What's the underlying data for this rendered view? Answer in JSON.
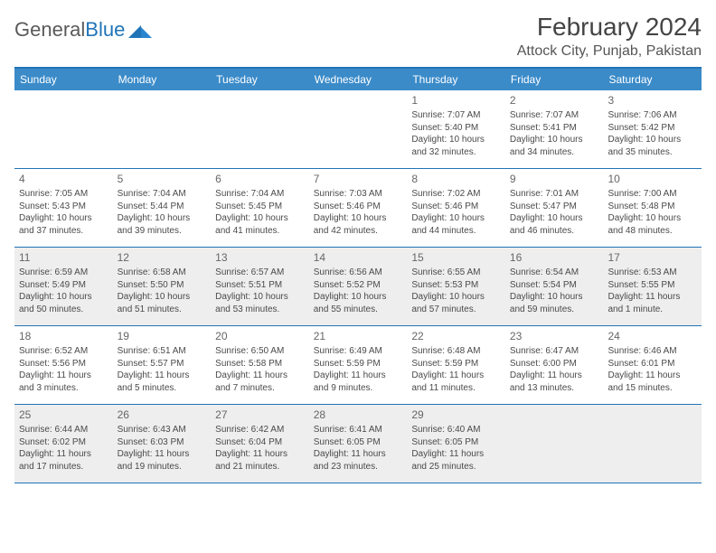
{
  "logo": {
    "text1": "General",
    "text2": "Blue",
    "accent": "#2074b8"
  },
  "title": "February 2024",
  "location": "Attock City, Punjab, Pakistan",
  "colors": {
    "header_bg": "#3b8bc9",
    "border": "#2074b8",
    "shaded_bg": "#eeeeee",
    "text": "#4a4a4a",
    "title_text": "#444444"
  },
  "day_names": [
    "Sunday",
    "Monday",
    "Tuesday",
    "Wednesday",
    "Thursday",
    "Friday",
    "Saturday"
  ],
  "weeks": [
    [
      null,
      null,
      null,
      null,
      {
        "n": "1",
        "sr": "Sunrise: 7:07 AM",
        "ss": "Sunset: 5:40 PM",
        "dl": "Daylight: 10 hours and 32 minutes."
      },
      {
        "n": "2",
        "sr": "Sunrise: 7:07 AM",
        "ss": "Sunset: 5:41 PM",
        "dl": "Daylight: 10 hours and 34 minutes."
      },
      {
        "n": "3",
        "sr": "Sunrise: 7:06 AM",
        "ss": "Sunset: 5:42 PM",
        "dl": "Daylight: 10 hours and 35 minutes."
      }
    ],
    [
      {
        "n": "4",
        "sr": "Sunrise: 7:05 AM",
        "ss": "Sunset: 5:43 PM",
        "dl": "Daylight: 10 hours and 37 minutes."
      },
      {
        "n": "5",
        "sr": "Sunrise: 7:04 AM",
        "ss": "Sunset: 5:44 PM",
        "dl": "Daylight: 10 hours and 39 minutes."
      },
      {
        "n": "6",
        "sr": "Sunrise: 7:04 AM",
        "ss": "Sunset: 5:45 PM",
        "dl": "Daylight: 10 hours and 41 minutes."
      },
      {
        "n": "7",
        "sr": "Sunrise: 7:03 AM",
        "ss": "Sunset: 5:46 PM",
        "dl": "Daylight: 10 hours and 42 minutes."
      },
      {
        "n": "8",
        "sr": "Sunrise: 7:02 AM",
        "ss": "Sunset: 5:46 PM",
        "dl": "Daylight: 10 hours and 44 minutes."
      },
      {
        "n": "9",
        "sr": "Sunrise: 7:01 AM",
        "ss": "Sunset: 5:47 PM",
        "dl": "Daylight: 10 hours and 46 minutes."
      },
      {
        "n": "10",
        "sr": "Sunrise: 7:00 AM",
        "ss": "Sunset: 5:48 PM",
        "dl": "Daylight: 10 hours and 48 minutes."
      }
    ],
    [
      {
        "n": "11",
        "sr": "Sunrise: 6:59 AM",
        "ss": "Sunset: 5:49 PM",
        "dl": "Daylight: 10 hours and 50 minutes."
      },
      {
        "n": "12",
        "sr": "Sunrise: 6:58 AM",
        "ss": "Sunset: 5:50 PM",
        "dl": "Daylight: 10 hours and 51 minutes."
      },
      {
        "n": "13",
        "sr": "Sunrise: 6:57 AM",
        "ss": "Sunset: 5:51 PM",
        "dl": "Daylight: 10 hours and 53 minutes."
      },
      {
        "n": "14",
        "sr": "Sunrise: 6:56 AM",
        "ss": "Sunset: 5:52 PM",
        "dl": "Daylight: 10 hours and 55 minutes."
      },
      {
        "n": "15",
        "sr": "Sunrise: 6:55 AM",
        "ss": "Sunset: 5:53 PM",
        "dl": "Daylight: 10 hours and 57 minutes."
      },
      {
        "n": "16",
        "sr": "Sunrise: 6:54 AM",
        "ss": "Sunset: 5:54 PM",
        "dl": "Daylight: 10 hours and 59 minutes."
      },
      {
        "n": "17",
        "sr": "Sunrise: 6:53 AM",
        "ss": "Sunset: 5:55 PM",
        "dl": "Daylight: 11 hours and 1 minute."
      }
    ],
    [
      {
        "n": "18",
        "sr": "Sunrise: 6:52 AM",
        "ss": "Sunset: 5:56 PM",
        "dl": "Daylight: 11 hours and 3 minutes."
      },
      {
        "n": "19",
        "sr": "Sunrise: 6:51 AM",
        "ss": "Sunset: 5:57 PM",
        "dl": "Daylight: 11 hours and 5 minutes."
      },
      {
        "n": "20",
        "sr": "Sunrise: 6:50 AM",
        "ss": "Sunset: 5:58 PM",
        "dl": "Daylight: 11 hours and 7 minutes."
      },
      {
        "n": "21",
        "sr": "Sunrise: 6:49 AM",
        "ss": "Sunset: 5:59 PM",
        "dl": "Daylight: 11 hours and 9 minutes."
      },
      {
        "n": "22",
        "sr": "Sunrise: 6:48 AM",
        "ss": "Sunset: 5:59 PM",
        "dl": "Daylight: 11 hours and 11 minutes."
      },
      {
        "n": "23",
        "sr": "Sunrise: 6:47 AM",
        "ss": "Sunset: 6:00 PM",
        "dl": "Daylight: 11 hours and 13 minutes."
      },
      {
        "n": "24",
        "sr": "Sunrise: 6:46 AM",
        "ss": "Sunset: 6:01 PM",
        "dl": "Daylight: 11 hours and 15 minutes."
      }
    ],
    [
      {
        "n": "25",
        "sr": "Sunrise: 6:44 AM",
        "ss": "Sunset: 6:02 PM",
        "dl": "Daylight: 11 hours and 17 minutes."
      },
      {
        "n": "26",
        "sr": "Sunrise: 6:43 AM",
        "ss": "Sunset: 6:03 PM",
        "dl": "Daylight: 11 hours and 19 minutes."
      },
      {
        "n": "27",
        "sr": "Sunrise: 6:42 AM",
        "ss": "Sunset: 6:04 PM",
        "dl": "Daylight: 11 hours and 21 minutes."
      },
      {
        "n": "28",
        "sr": "Sunrise: 6:41 AM",
        "ss": "Sunset: 6:05 PM",
        "dl": "Daylight: 11 hours and 23 minutes."
      },
      {
        "n": "29",
        "sr": "Sunrise: 6:40 AM",
        "ss": "Sunset: 6:05 PM",
        "dl": "Daylight: 11 hours and 25 minutes."
      },
      null,
      null
    ]
  ],
  "shaded_weeks": [
    2,
    4
  ]
}
